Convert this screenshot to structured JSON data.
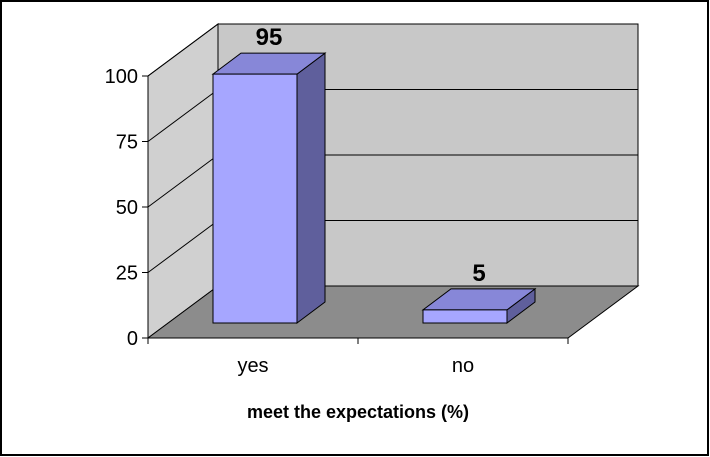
{
  "chart_data": {
    "type": "bar",
    "categories": [
      "yes",
      "no"
    ],
    "values": [
      95,
      5
    ],
    "title": "",
    "xlabel": "meet the expectations (%)",
    "ylabel": "",
    "ylim": [
      0,
      100
    ],
    "yticks": [
      "0",
      "25",
      "50",
      "75",
      "100"
    ],
    "data_labels": [
      "95",
      "5"
    ],
    "grid": true,
    "legend": "none",
    "three_d": true,
    "colors": {
      "bar_front": "#A6A6FF",
      "bar_top": "#8787D8",
      "bar_side": "#5F5F9C",
      "back_wall": "#C8C8C8",
      "side_wall": "#D0D0D0",
      "floor": "#8C8C8C",
      "gridline": "#000000",
      "outline": "#000000"
    }
  }
}
